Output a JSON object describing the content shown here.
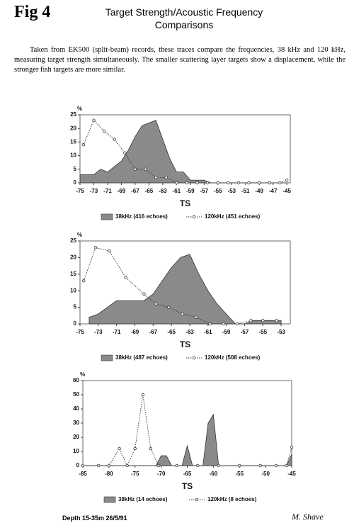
{
  "header": {
    "fig": "Fig 4",
    "title": "Target Strength/Acoustic Frequency Comparisons"
  },
  "caption": "Taken from EK500 (split-beam) records, these traces compare the frequencies, 38 kHz and 120 kHz, measuring target strength simultaneously.  The smaller scattering layer targets show a displacement, while the stronger fish targets are more similar.",
  "footer": "Depth 15-35m   26/5/91",
  "signature": "M. Shave",
  "chart_data": [
    {
      "type": "combo",
      "ylabel": "%",
      "xlabel": "TS",
      "grid": false,
      "xlim": [
        -75,
        -44.5
      ],
      "xticks": [
        -75,
        -73,
        -71,
        -69,
        -67,
        -65,
        -63,
        -61,
        -59,
        -57,
        -55,
        -53,
        -51,
        -49,
        -47,
        -45
      ],
      "ylim": [
        0,
        25
      ],
      "yticks": [
        0,
        5,
        10,
        15,
        20,
        25
      ],
      "series": [
        {
          "name": "38kHz (416 echoes)",
          "kind": "area",
          "color": "#8a8a8a",
          "x": [
            -75,
            -74,
            -73,
            -72,
            -71,
            -70,
            -69,
            -68,
            -67,
            -66,
            -65,
            -64,
            -63,
            -62,
            -61,
            -60,
            -59,
            -58,
            -57,
            -56,
            -55,
            -54,
            -53,
            -52,
            -51,
            -50,
            -49,
            -48,
            -47,
            -46,
            -45
          ],
          "values": [
            3,
            3,
            3,
            5,
            4,
            6,
            8,
            12,
            17,
            21,
            22,
            23,
            16,
            9,
            4,
            4,
            1,
            1,
            1,
            0,
            0,
            0,
            0,
            0,
            0,
            0,
            0,
            0,
            0,
            0,
            0
          ]
        },
        {
          "name": "120kHz (451 echoes)",
          "kind": "line",
          "color": "#333333",
          "x": [
            -74.5,
            -73,
            -71.5,
            -70,
            -68.5,
            -67,
            -65.5,
            -64,
            -62.5,
            -61,
            -59.5,
            -58,
            -56.5,
            -55,
            -53.5,
            -52,
            -50.5,
            -49,
            -47.5,
            -46,
            -45
          ],
          "values": [
            14,
            23,
            19,
            16,
            11,
            5,
            5,
            2,
            2,
            0,
            0,
            0,
            0,
            0,
            0,
            0,
            0,
            0,
            0,
            0,
            1
          ]
        }
      ]
    },
    {
      "type": "combo",
      "ylabel": "%",
      "xlabel": "TS",
      "grid": false,
      "xlim": [
        -75,
        -52
      ],
      "xticks": [
        -75,
        -73,
        -71,
        -69,
        -67,
        -65,
        -63,
        -61,
        -59,
        -57,
        -55,
        -53
      ],
      "ylim": [
        0,
        25
      ],
      "yticks": [
        0,
        5,
        10,
        15,
        20,
        25
      ],
      "series": [
        {
          "name": "38kHz (487 echoes)",
          "kind": "area",
          "color": "#8a8a8a",
          "x": [
            -74,
            -73,
            -72,
            -71,
            -70,
            -69,
            -68,
            -67,
            -66,
            -65,
            -64,
            -63,
            -62,
            -61,
            -60,
            -59,
            -58,
            -57,
            -56,
            -55,
            -54,
            -53
          ],
          "values": [
            2,
            3,
            5,
            7,
            7,
            7,
            7,
            9,
            13,
            17,
            20,
            21,
            15,
            10,
            6,
            3,
            0,
            0,
            1,
            1,
            1,
            1
          ]
        },
        {
          "name": "120kHz (508 echoes)",
          "kind": "line",
          "color": "#333333",
          "x": [
            -74.6,
            -73.3,
            -71.8,
            -70,
            -68,
            -66.7,
            -65.3,
            -63.8,
            -62.3,
            -60.8,
            -59.3,
            -57.8,
            -56.3,
            -55,
            -53.5
          ],
          "values": [
            13,
            23,
            22,
            14,
            9,
            6,
            5,
            3,
            2,
            0,
            0,
            0,
            1,
            1,
            1
          ]
        }
      ]
    },
    {
      "type": "combo",
      "ylabel": "%",
      "xlabel": "TS",
      "grid": false,
      "xlim": [
        -85,
        -45
      ],
      "xticks": [
        -85,
        -80,
        -75,
        -70,
        -65,
        -60,
        -55,
        -50,
        -45
      ],
      "ylim": [
        0,
        60
      ],
      "yticks": [
        0,
        10,
        20,
        30,
        40,
        50,
        60
      ],
      "series": [
        {
          "name": "38kHz (14 echoes)",
          "kind": "area",
          "color": "#8a8a8a",
          "x": [
            -85,
            -71,
            -70,
            -69,
            -68,
            -66,
            -65,
            -64,
            -62,
            -61,
            -60,
            -59,
            -46,
            -45
          ],
          "values": [
            0,
            0,
            7,
            7,
            0,
            0,
            14,
            0,
            0,
            30,
            36,
            0,
            0,
            8
          ]
        },
        {
          "name": "120kHz (8 echoes)",
          "kind": "line",
          "color": "#333333",
          "x": [
            -85,
            -82,
            -80,
            -78,
            -76.5,
            -75,
            -73.5,
            -72,
            -70.5,
            -67,
            -63,
            -59,
            -55,
            -51,
            -48,
            -46,
            -45
          ],
          "values": [
            0,
            0,
            0,
            12,
            0,
            12,
            50,
            12,
            0,
            0,
            0,
            0,
            0,
            0,
            0,
            0,
            13
          ]
        }
      ]
    }
  ]
}
